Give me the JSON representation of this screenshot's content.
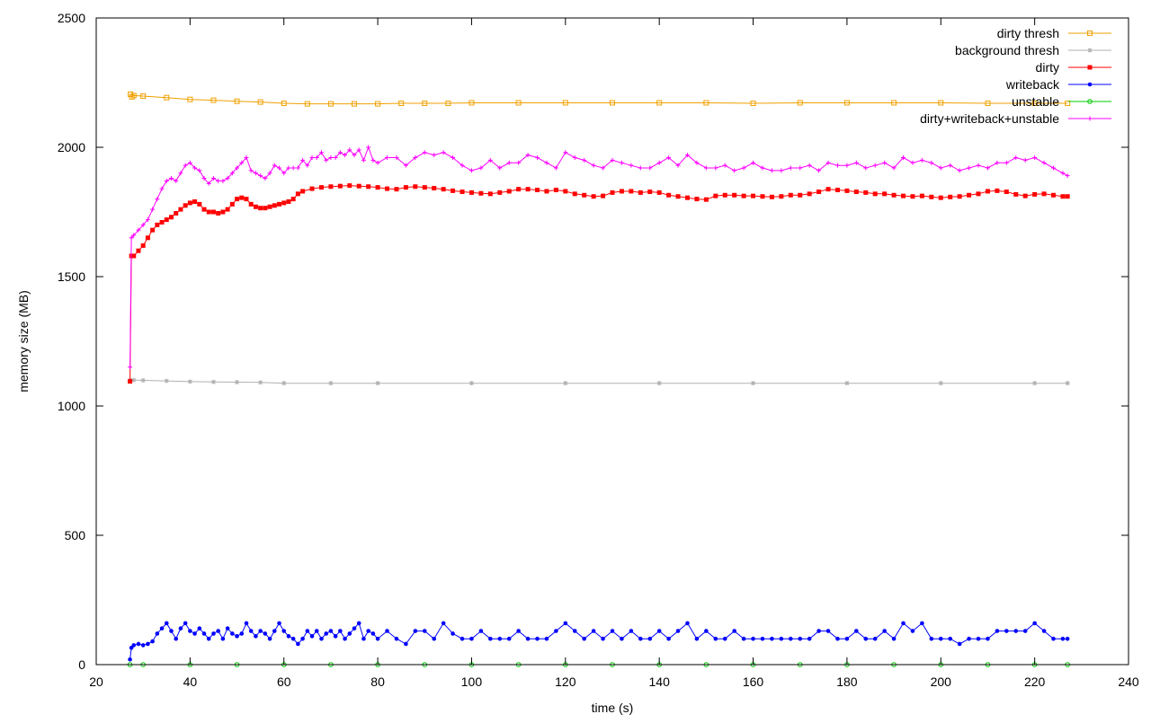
{
  "chart_data": {
    "type": "line",
    "title": "",
    "xlabel": "time (s)",
    "ylabel": "memory size (MB)",
    "xlim": [
      20,
      240
    ],
    "ylim": [
      0,
      2500
    ],
    "xticks": [
      20,
      40,
      60,
      80,
      100,
      120,
      140,
      160,
      180,
      200,
      220,
      240
    ],
    "yticks": [
      0,
      500,
      1000,
      1500,
      2000,
      2500
    ],
    "grid": false,
    "legend_position": "top-right",
    "series": [
      {
        "name": "dirty thresh",
        "color": "#f0a000",
        "marker": "square-open",
        "x": [
          27.3,
          27.6,
          28,
          30,
          35,
          40,
          45,
          50,
          55,
          60,
          65,
          70,
          75,
          80,
          85,
          90,
          95,
          100,
          110,
          120,
          130,
          140,
          150,
          160,
          170,
          180,
          190,
          200,
          210,
          220,
          227
        ],
        "y": [
          2205,
          2195,
          2200,
          2198,
          2192,
          2185,
          2182,
          2178,
          2175,
          2170,
          2168,
          2168,
          2168,
          2168,
          2170,
          2170,
          2170,
          2172,
          2172,
          2172,
          2172,
          2172,
          2172,
          2170,
          2172,
          2172,
          2172,
          2172,
          2170,
          2170,
          2170
        ]
      },
      {
        "name": "background thresh",
        "color": "#b0b0b0",
        "marker": "star",
        "x": [
          27.3,
          28,
          30,
          35,
          40,
          45,
          50,
          55,
          60,
          70,
          80,
          100,
          120,
          140,
          160,
          180,
          200,
          220,
          227
        ],
        "y": [
          1100,
          1100,
          1099,
          1097,
          1094,
          1093,
          1092,
          1091,
          1088,
          1088,
          1088,
          1088,
          1088,
          1088,
          1088,
          1088,
          1088,
          1088,
          1088
        ]
      },
      {
        "name": "dirty",
        "color": "#ff0000",
        "marker": "square-filled",
        "x": [
          27.2,
          27.5,
          28,
          29,
          30,
          31,
          32,
          33,
          34,
          35,
          36,
          37,
          38,
          39,
          40,
          41,
          42,
          43,
          44,
          45,
          46,
          47,
          48,
          49,
          50,
          51,
          52,
          53,
          54,
          55,
          56,
          57,
          58,
          59,
          60,
          61,
          62,
          63,
          64,
          66,
          68,
          70,
          72,
          74,
          76,
          78,
          80,
          82,
          84,
          86,
          88,
          90,
          92,
          94,
          96,
          98,
          100,
          102,
          104,
          106,
          108,
          110,
          112,
          114,
          116,
          118,
          120,
          122,
          124,
          126,
          128,
          130,
          132,
          134,
          136,
          138,
          140,
          142,
          144,
          146,
          148,
          150,
          152,
          154,
          156,
          158,
          160,
          162,
          164,
          166,
          168,
          170,
          172,
          174,
          176,
          178,
          180,
          182,
          184,
          186,
          188,
          190,
          192,
          194,
          196,
          198,
          200,
          202,
          204,
          206,
          208,
          210,
          212,
          214,
          216,
          218,
          220,
          222,
          224,
          226,
          227
        ],
        "y": [
          1095,
          1580,
          1580,
          1600,
          1620,
          1650,
          1680,
          1700,
          1710,
          1720,
          1730,
          1745,
          1760,
          1775,
          1785,
          1790,
          1780,
          1760,
          1750,
          1750,
          1745,
          1750,
          1760,
          1780,
          1800,
          1805,
          1800,
          1780,
          1770,
          1765,
          1765,
          1770,
          1775,
          1780,
          1785,
          1790,
          1800,
          1820,
          1830,
          1840,
          1845,
          1848,
          1850,
          1852,
          1850,
          1848,
          1845,
          1840,
          1838,
          1845,
          1848,
          1845,
          1842,
          1838,
          1832,
          1828,
          1825,
          1822,
          1820,
          1825,
          1830,
          1838,
          1838,
          1835,
          1830,
          1835,
          1830,
          1820,
          1815,
          1810,
          1812,
          1825,
          1830,
          1830,
          1825,
          1828,
          1825,
          1815,
          1810,
          1805,
          1800,
          1798,
          1812,
          1815,
          1815,
          1812,
          1812,
          1810,
          1808,
          1810,
          1815,
          1815,
          1820,
          1828,
          1838,
          1835,
          1832,
          1828,
          1825,
          1820,
          1820,
          1815,
          1812,
          1810,
          1812,
          1808,
          1805,
          1808,
          1810,
          1815,
          1820,
          1830,
          1832,
          1828,
          1818,
          1812,
          1818,
          1820,
          1815,
          1810,
          1810
        ]
      },
      {
        "name": "writeback",
        "color": "#0000ff",
        "marker": "circle-filled",
        "x": [
          27.2,
          27.5,
          28,
          29,
          30,
          31,
          32,
          33,
          34,
          35,
          36,
          37,
          38,
          39,
          40,
          41,
          42,
          43,
          44,
          45,
          46,
          47,
          48,
          49,
          50,
          51,
          52,
          53,
          54,
          55,
          56,
          57,
          58,
          59,
          60,
          61,
          62,
          63,
          64,
          65,
          66,
          67,
          68,
          69,
          70,
          71,
          72,
          73,
          74,
          75,
          76,
          77,
          78,
          79,
          80,
          82,
          84,
          86,
          88,
          90,
          92,
          94,
          96,
          98,
          100,
          102,
          104,
          106,
          108,
          110,
          112,
          114,
          116,
          118,
          120,
          122,
          124,
          126,
          128,
          130,
          132,
          134,
          136,
          138,
          140,
          142,
          144,
          146,
          148,
          150,
          152,
          154,
          156,
          158,
          160,
          162,
          164,
          166,
          168,
          170,
          172,
          174,
          176,
          178,
          180,
          182,
          184,
          186,
          188,
          190,
          192,
          194,
          196,
          198,
          200,
          202,
          204,
          206,
          208,
          210,
          212,
          214,
          216,
          218,
          220,
          222,
          224,
          226,
          227
        ],
        "y": [
          20,
          65,
          75,
          80,
          75,
          80,
          90,
          120,
          140,
          160,
          130,
          100,
          140,
          160,
          130,
          120,
          140,
          120,
          100,
          120,
          130,
          100,
          140,
          120,
          110,
          120,
          160,
          130,
          110,
          130,
          120,
          100,
          130,
          160,
          130,
          110,
          100,
          80,
          100,
          130,
          110,
          130,
          100,
          120,
          130,
          110,
          130,
          100,
          120,
          140,
          160,
          100,
          130,
          120,
          100,
          130,
          100,
          80,
          130,
          130,
          100,
          160,
          120,
          100,
          100,
          130,
          100,
          100,
          100,
          130,
          100,
          100,
          100,
          130,
          160,
          130,
          100,
          130,
          100,
          130,
          100,
          130,
          100,
          100,
          130,
          100,
          130,
          160,
          100,
          130,
          100,
          100,
          130,
          100,
          100,
          100,
          100,
          100,
          100,
          100,
          100,
          130,
          130,
          100,
          100,
          130,
          100,
          100,
          130,
          100,
          160,
          130,
          160,
          100,
          100,
          100,
          80,
          100,
          100,
          100,
          130,
          130,
          130,
          130,
          160,
          130,
          100,
          100,
          100
        ]
      },
      {
        "name": "unstable",
        "color": "#00cc00",
        "marker": "circle-open",
        "x": [
          27.2,
          30,
          40,
          50,
          60,
          70,
          80,
          90,
          100,
          110,
          120,
          130,
          140,
          150,
          160,
          170,
          180,
          190,
          200,
          210,
          220,
          227
        ],
        "y": [
          0,
          0,
          0,
          0,
          0,
          0,
          0,
          0,
          0,
          0,
          0,
          0,
          0,
          0,
          0,
          0,
          0,
          0,
          0,
          0,
          0,
          0
        ]
      },
      {
        "name": "dirty+writeback+unstable",
        "color": "#ff00ff",
        "marker": "plus",
        "x": [
          27.2,
          27.5,
          28,
          29,
          30,
          31,
          32,
          33,
          34,
          35,
          36,
          37,
          38,
          39,
          40,
          41,
          42,
          43,
          44,
          45,
          46,
          47,
          48,
          49,
          50,
          51,
          52,
          53,
          54,
          55,
          56,
          57,
          58,
          59,
          60,
          61,
          62,
          63,
          64,
          65,
          66,
          67,
          68,
          69,
          70,
          71,
          72,
          73,
          74,
          75,
          76,
          77,
          78,
          79,
          80,
          82,
          84,
          86,
          88,
          90,
          92,
          94,
          96,
          98,
          100,
          102,
          104,
          106,
          108,
          110,
          112,
          114,
          116,
          118,
          120,
          122,
          124,
          126,
          128,
          130,
          132,
          134,
          136,
          138,
          140,
          142,
          144,
          146,
          148,
          150,
          152,
          154,
          156,
          158,
          160,
          162,
          164,
          166,
          168,
          170,
          172,
          174,
          176,
          178,
          180,
          182,
          184,
          186,
          188,
          190,
          192,
          194,
          196,
          198,
          200,
          202,
          204,
          206,
          208,
          210,
          212,
          214,
          216,
          218,
          220,
          222,
          224,
          226,
          227
        ],
        "y": [
          1150,
          1650,
          1660,
          1680,
          1700,
          1720,
          1760,
          1800,
          1840,
          1870,
          1880,
          1870,
          1900,
          1930,
          1940,
          1920,
          1910,
          1880,
          1860,
          1880,
          1870,
          1870,
          1880,
          1900,
          1920,
          1940,
          1960,
          1910,
          1900,
          1890,
          1880,
          1900,
          1930,
          1920,
          1900,
          1920,
          1920,
          1920,
          1950,
          1930,
          1960,
          1960,
          1980,
          1950,
          1960,
          1960,
          1980,
          1970,
          1990,
          1970,
          1990,
          1950,
          2000,
          1950,
          1940,
          1960,
          1960,
          1930,
          1960,
          1980,
          1970,
          1980,
          1960,
          1930,
          1910,
          1920,
          1950,
          1920,
          1940,
          1940,
          1970,
          1960,
          1940,
          1920,
          1980,
          1960,
          1950,
          1930,
          1920,
          1950,
          1940,
          1930,
          1920,
          1920,
          1940,
          1960,
          1930,
          1970,
          1940,
          1920,
          1920,
          1930,
          1910,
          1920,
          1940,
          1920,
          1910,
          1910,
          1920,
          1920,
          1930,
          1910,
          1940,
          1930,
          1930,
          1940,
          1920,
          1930,
          1940,
          1920,
          1960,
          1940,
          1950,
          1940,
          1920,
          1930,
          1910,
          1920,
          1930,
          1920,
          1940,
          1940,
          1960,
          1950,
          1960,
          1940,
          1920,
          1900,
          1890
        ]
      }
    ]
  }
}
